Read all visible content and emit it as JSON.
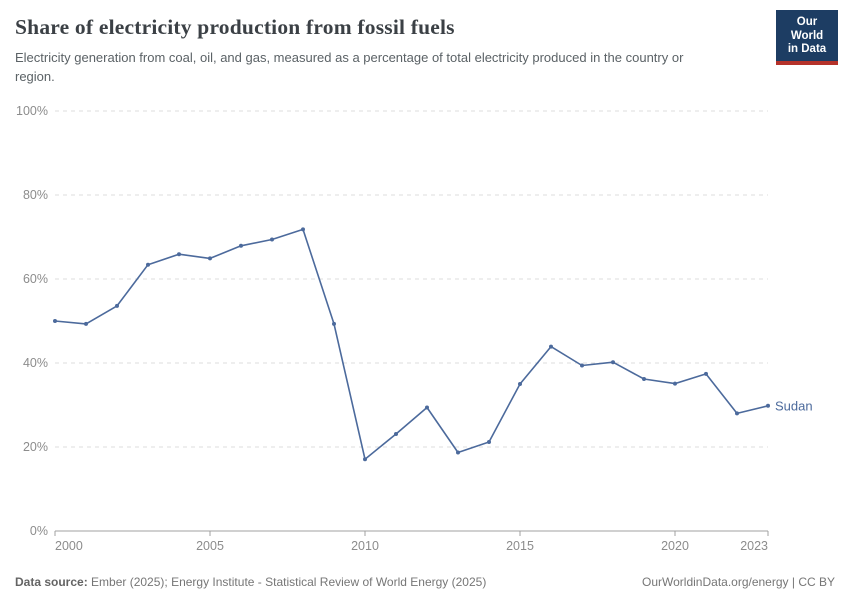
{
  "header": {
    "title": "Share of electricity production from fossil fuels",
    "subtitle": "Electricity generation from coal, oil, and gas, measured as a percentage of total electricity produced in the country or region.",
    "logo": {
      "line1": "Our World",
      "line2": "in Data"
    }
  },
  "chart_data": {
    "type": "line",
    "title": "Share of electricity production from fossil fuels",
    "x": [
      2000,
      2001,
      2002,
      2003,
      2004,
      2005,
      2006,
      2007,
      2008,
      2009,
      2010,
      2011,
      2012,
      2013,
      2014,
      2015,
      2016,
      2017,
      2018,
      2019,
      2020,
      2021,
      2022,
      2023
    ],
    "series": [
      {
        "name": "Sudan",
        "color": "#4c6a9c",
        "values": [
          50.0,
          49.3,
          53.6,
          63.4,
          65.9,
          64.9,
          67.9,
          69.4,
          71.8,
          49.3,
          17.1,
          23.1,
          29.4,
          18.7,
          21.2,
          35.0,
          43.9,
          39.4,
          40.2,
          36.2,
          35.1,
          37.4,
          28.0,
          29.8
        ]
      }
    ],
    "xlabel": "",
    "ylabel": "",
    "ylim": [
      0,
      100
    ],
    "yticks": [
      0,
      20,
      40,
      60,
      80,
      100
    ],
    "ytick_format": "{v}%",
    "xticks": [
      2000,
      2005,
      2010,
      2015,
      2020,
      2023
    ],
    "grid": "horizontal-dashed",
    "legend_position": "end-of-line-label"
  },
  "colors": {
    "line": "#4c6a9c",
    "grid": "#dcdcdc",
    "axis": "#a1a1a1",
    "tick_text": "#8c8c8c",
    "logo_bg": "#1d3d63",
    "logo_bar": "#b5322a"
  },
  "footer": {
    "datasource_label": "Data source:",
    "datasource_text": " Ember (2025); Energy Institute - Statistical Review of World Energy (2025)",
    "link_text": "OurWorldinData.org/energy | CC BY"
  }
}
